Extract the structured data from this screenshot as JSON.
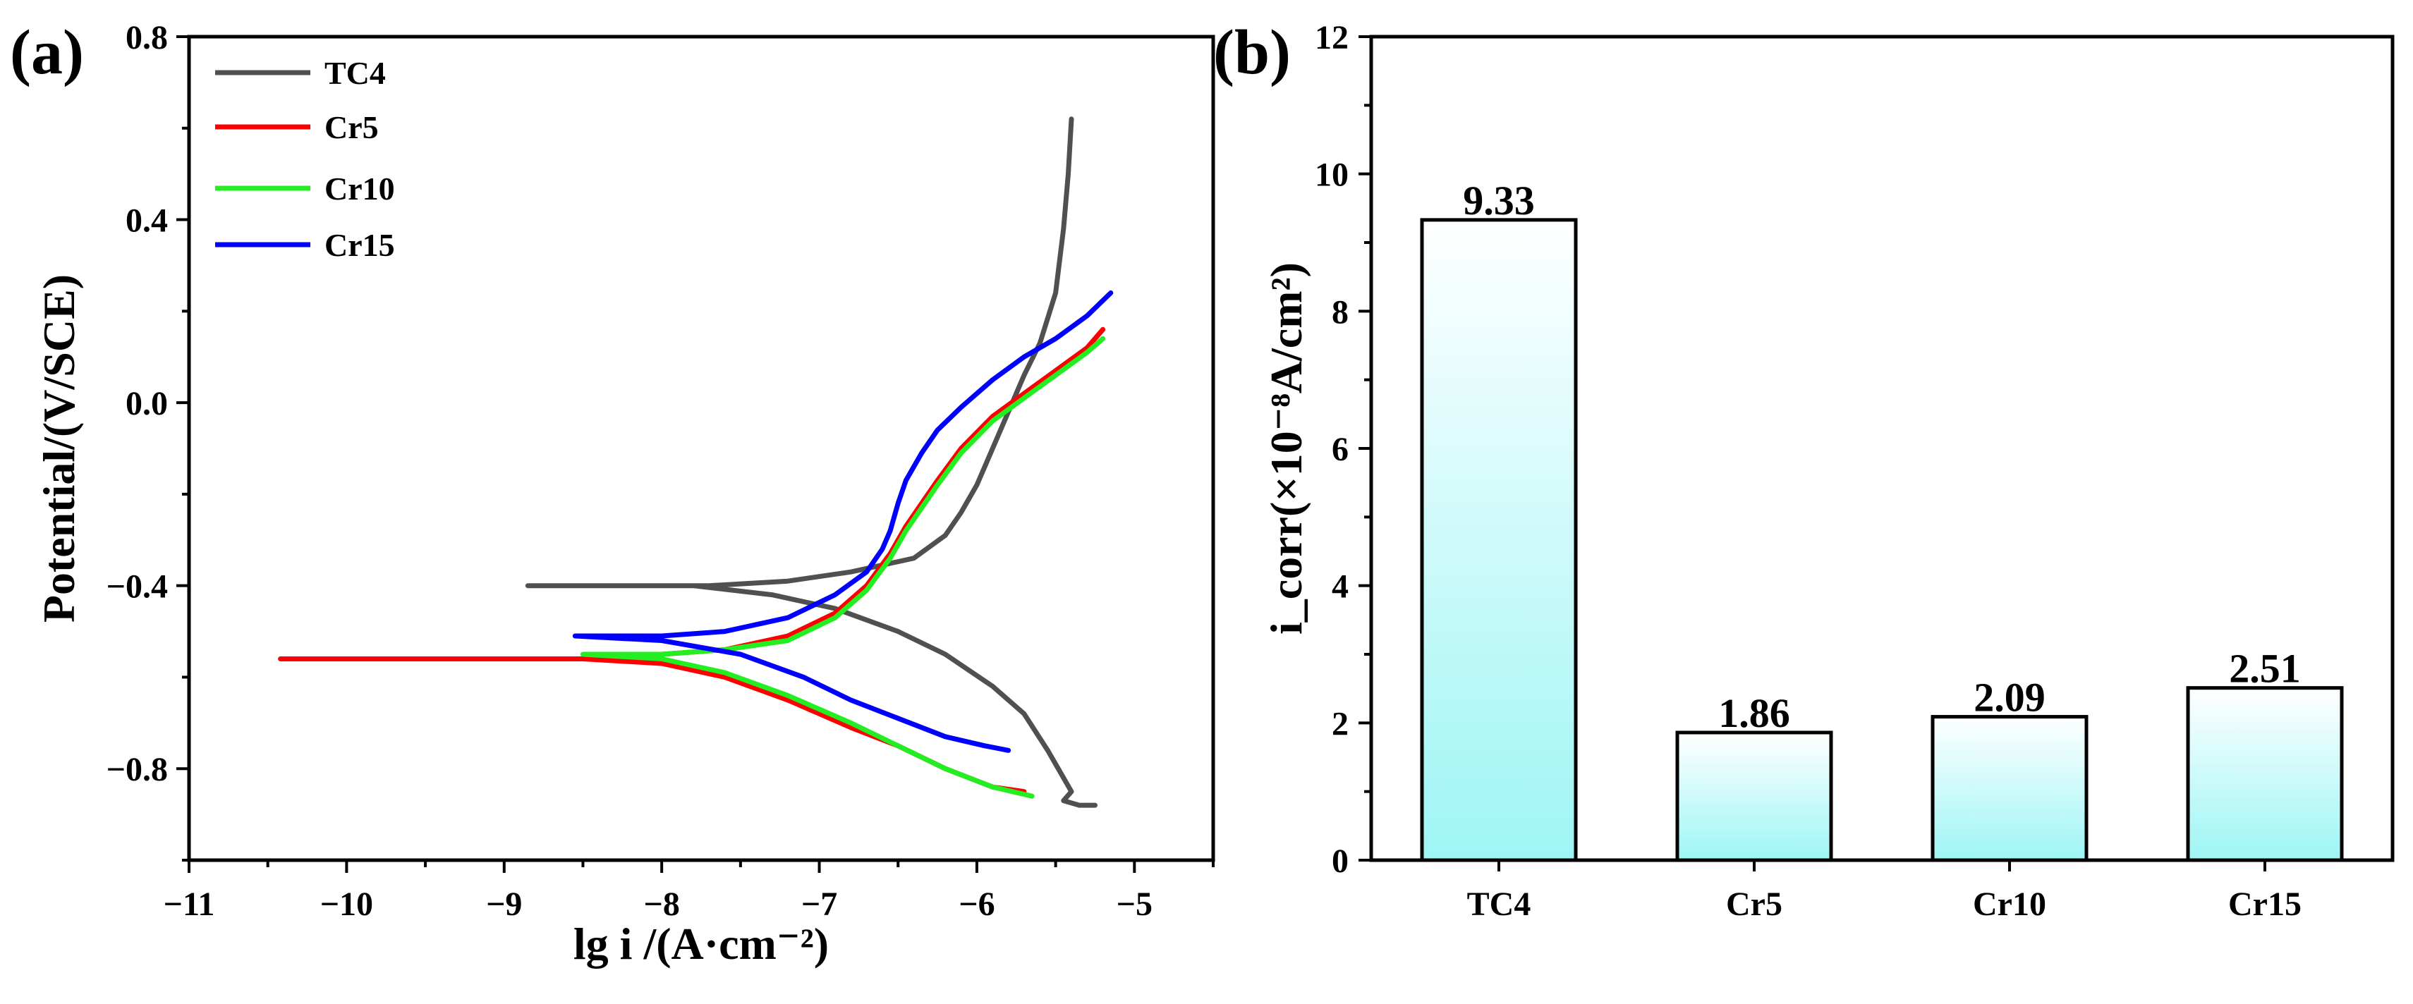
{
  "chart_data": [
    {
      "type": "line",
      "panel_label": "(a)",
      "xlabel": "lg i /(A·cm⁻²)",
      "ylabel": "Potential/(V/SCE)",
      "xlim": [
        -11,
        -4.5
      ],
      "ylim": [
        -1.0,
        0.8
      ],
      "xticks": [
        "−11",
        "−10",
        "−9",
        "−8",
        "−7",
        "−6",
        "−5"
      ],
      "yticks": [
        "−0.8",
        "−0.4",
        "0.0",
        "0.4",
        "0.8"
      ],
      "legend_position": "top-left",
      "series": [
        {
          "name": "TC4",
          "color": "#505050",
          "points": [
            [
              -5.4,
              0.62
            ],
            [
              -5.42,
              0.5
            ],
            [
              -5.45,
              0.38
            ],
            [
              -5.5,
              0.24
            ],
            [
              -5.6,
              0.13
            ],
            [
              -5.7,
              0.06
            ],
            [
              -5.8,
              -0.02
            ],
            [
              -5.9,
              -0.1
            ],
            [
              -6.0,
              -0.18
            ],
            [
              -6.1,
              -0.24
            ],
            [
              -6.2,
              -0.29
            ],
            [
              -6.4,
              -0.34
            ],
            [
              -6.8,
              -0.37
            ],
            [
              -7.2,
              -0.39
            ],
            [
              -7.7,
              -0.4
            ],
            [
              -8.3,
              -0.4
            ],
            [
              -8.85,
              -0.4
            ],
            [
              -8.3,
              -0.4
            ],
            [
              -7.8,
              -0.4
            ],
            [
              -7.3,
              -0.42
            ],
            [
              -6.9,
              -0.45
            ],
            [
              -6.5,
              -0.5
            ],
            [
              -6.2,
              -0.55
            ],
            [
              -5.9,
              -0.62
            ],
            [
              -5.7,
              -0.68
            ],
            [
              -5.55,
              -0.76
            ],
            [
              -5.45,
              -0.82
            ],
            [
              -5.4,
              -0.85
            ],
            [
              -5.45,
              -0.87
            ],
            [
              -5.35,
              -0.88
            ],
            [
              -5.25,
              -0.88
            ]
          ]
        },
        {
          "name": "Cr5",
          "color": "#ff0000",
          "points": [
            [
              -5.2,
              0.16
            ],
            [
              -5.3,
              0.12
            ],
            [
              -5.5,
              0.07
            ],
            [
              -5.7,
              0.02
            ],
            [
              -5.9,
              -0.03
            ],
            [
              -6.1,
              -0.1
            ],
            [
              -6.25,
              -0.17
            ],
            [
              -6.35,
              -0.22
            ],
            [
              -6.45,
              -0.27
            ],
            [
              -6.55,
              -0.33
            ],
            [
              -6.7,
              -0.4
            ],
            [
              -6.9,
              -0.46
            ],
            [
              -7.2,
              -0.51
            ],
            [
              -7.6,
              -0.54
            ],
            [
              -8.0,
              -0.55
            ],
            [
              -8.5,
              -0.56
            ],
            [
              -9.5,
              -0.56
            ],
            [
              -10.42,
              -0.56
            ],
            [
              -9.5,
              -0.56
            ],
            [
              -8.5,
              -0.56
            ],
            [
              -8.0,
              -0.57
            ],
            [
              -7.6,
              -0.6
            ],
            [
              -7.2,
              -0.65
            ],
            [
              -6.8,
              -0.71
            ],
            [
              -6.5,
              -0.75
            ],
            [
              -6.2,
              -0.8
            ],
            [
              -5.9,
              -0.84
            ],
            [
              -5.7,
              -0.85
            ]
          ]
        },
        {
          "name": "Cr10",
          "color": "#22ee22",
          "points": [
            [
              -5.2,
              0.14
            ],
            [
              -5.3,
              0.11
            ],
            [
              -5.5,
              0.06
            ],
            [
              -5.7,
              0.01
            ],
            [
              -5.9,
              -0.04
            ],
            [
              -6.1,
              -0.11
            ],
            [
              -6.25,
              -0.18
            ],
            [
              -6.35,
              -0.23
            ],
            [
              -6.45,
              -0.28
            ],
            [
              -6.55,
              -0.34
            ],
            [
              -6.7,
              -0.41
            ],
            [
              -6.9,
              -0.47
            ],
            [
              -7.2,
              -0.52
            ],
            [
              -7.6,
              -0.54
            ],
            [
              -8.0,
              -0.55
            ],
            [
              -8.5,
              -0.55
            ],
            [
              -8.0,
              -0.56
            ],
            [
              -7.6,
              -0.59
            ],
            [
              -7.2,
              -0.64
            ],
            [
              -6.8,
              -0.7
            ],
            [
              -6.5,
              -0.75
            ],
            [
              -6.2,
              -0.8
            ],
            [
              -5.9,
              -0.84
            ],
            [
              -5.65,
              -0.86
            ]
          ]
        },
        {
          "name": "Cr15",
          "color": "#0000ff",
          "points": [
            [
              -5.15,
              0.24
            ],
            [
              -5.3,
              0.19
            ],
            [
              -5.5,
              0.14
            ],
            [
              -5.7,
              0.1
            ],
            [
              -5.9,
              0.05
            ],
            [
              -6.1,
              -0.01
            ],
            [
              -6.25,
              -0.06
            ],
            [
              -6.35,
              -0.11
            ],
            [
              -6.45,
              -0.17
            ],
            [
              -6.5,
              -0.22
            ],
            [
              -6.55,
              -0.28
            ],
            [
              -6.6,
              -0.32
            ],
            [
              -6.7,
              -0.37
            ],
            [
              -6.9,
              -0.42
            ],
            [
              -7.2,
              -0.47
            ],
            [
              -7.6,
              -0.5
            ],
            [
              -8.0,
              -0.51
            ],
            [
              -8.55,
              -0.51
            ],
            [
              -8.0,
              -0.52
            ],
            [
              -7.5,
              -0.55
            ],
            [
              -7.1,
              -0.6
            ],
            [
              -6.8,
              -0.65
            ],
            [
              -6.5,
              -0.69
            ],
            [
              -6.2,
              -0.73
            ],
            [
              -5.95,
              -0.75
            ],
            [
              -5.8,
              -0.76
            ]
          ]
        }
      ]
    },
    {
      "type": "bar",
      "panel_label": "(b)",
      "categories": [
        "TC4",
        "Cr5",
        "Cr10",
        "Cr15"
      ],
      "values": [
        9.33,
        1.86,
        2.09,
        2.51
      ],
      "value_labels": [
        "9.33",
        "1.86",
        "2.09",
        "2.51"
      ],
      "ylabel": "i_corr(×10⁻⁸A/cm²)",
      "ylim": [
        0,
        12
      ],
      "yticks": [
        "0",
        "2",
        "4",
        "6",
        "8",
        "10",
        "12"
      ],
      "bar_gradient": [
        "#ffffff",
        "#9ef5f5"
      ]
    }
  ]
}
